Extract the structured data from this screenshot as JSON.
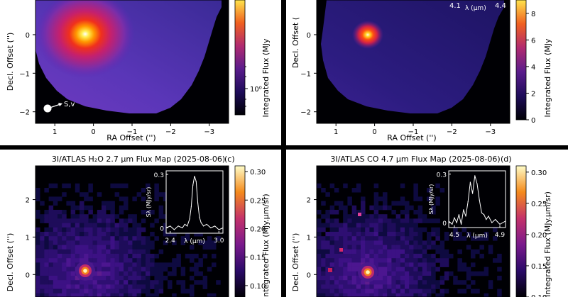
{
  "figure": {
    "background": "#000000",
    "panel_bg": "#ffffff"
  },
  "chart_data": [
    {
      "type": "heatmap",
      "panel": "a",
      "title": "",
      "xlabel": "RA Offset ('')",
      "ylabel": "Decl. Offset ('')",
      "xlim": [
        1.5,
        -3.5
      ],
      "ylim": [
        -2.3,
        0.9
      ],
      "x_ticks": [
        1,
        0,
        -1,
        -2,
        -3
      ],
      "x_tick_labels": [
        "1",
        "0",
        "−1",
        "−2",
        "−3"
      ],
      "y_ticks": [
        0,
        -1,
        -2
      ],
      "y_tick_labels": [
        "0",
        "−1",
        "−2"
      ],
      "colorbar": {
        "label": "Integrated Flux (MJy",
        "scale": "log",
        "tick_labels": [
          "10⁰"
        ]
      },
      "peak": {
        "x": 0.0,
        "y": 0.0
      },
      "annotations": [
        {
          "text": "S,v"
        }
      ]
    },
    {
      "type": "heatmap",
      "panel": "b",
      "title": "",
      "xlabel": "RA Offset ('')",
      "ylabel": "Decl. Offset (",
      "xlim": [
        1.5,
        -3.5
      ],
      "ylim": [
        -2.3,
        0.9
      ],
      "x_ticks": [
        1,
        0,
        -1,
        -2,
        -3
      ],
      "x_tick_labels": [
        "1",
        "0",
        "−1",
        "−2",
        "−3"
      ],
      "y_ticks": [
        0,
        -1,
        -2
      ],
      "y_tick_labels": [
        "0",
        "−1",
        "−2"
      ],
      "colorbar": {
        "label": "Integrated Flux (MJy",
        "scale": "linear",
        "range": [
          0,
          9
        ],
        "ticks": [
          0,
          2,
          4,
          6,
          8
        ],
        "tick_labels": [
          "0",
          "2",
          "4",
          "6",
          "8"
        ]
      },
      "peak": {
        "x": 0.0,
        "y": 0.0
      },
      "inset": {
        "tick_labels": [
          "4.1",
          "4.4"
        ],
        "xlabel": "λ (μm)"
      }
    },
    {
      "type": "heatmap",
      "panel": "c",
      "panel_label": "(c)",
      "title": "3I/ATLAS H₂O 2.7 μm Flux Map (2025-08-06)",
      "xlabel": "",
      "ylabel": "Decl. Offset ('')",
      "ylim": [
        -0.6,
        2.9
      ],
      "y_ticks": [
        2,
        1,
        0
      ],
      "y_tick_labels": [
        "2",
        "1",
        "0"
      ],
      "colorbar": {
        "label": "ntegrated Flux (MJy.μm/sr)",
        "range": [
          0.08,
          0.31
        ],
        "ticks": [
          0.3,
          0.25,
          0.2,
          0.15,
          0.1
        ],
        "tick_labels": [
          "0.30",
          "0.25",
          "0.20",
          "0.15",
          "0.10"
        ]
      },
      "peak": {
        "x": 0.0,
        "y": 0.0
      },
      "inset": {
        "type": "line",
        "xlabel": "λ (μm)",
        "ylabel": "Sλ (MJy/sr)",
        "xlim": [
          2.35,
          3.05
        ],
        "ylim": [
          -0.03,
          0.32
        ],
        "x_tick_labels": [
          "2.4",
          "3.0"
        ],
        "y_tick_labels": [
          "0.3",
          "0"
        ],
        "x": [
          2.35,
          2.4,
          2.45,
          2.5,
          2.55,
          2.58,
          2.61,
          2.64,
          2.66,
          2.68,
          2.7,
          2.72,
          2.74,
          2.76,
          2.78,
          2.81,
          2.85,
          2.9,
          2.95,
          3.0,
          3.05
        ],
        "y": [
          0.0,
          0.01,
          -0.01,
          0.01,
          0.0,
          0.02,
          0.01,
          0.05,
          0.12,
          0.24,
          0.29,
          0.26,
          0.14,
          0.06,
          0.03,
          0.01,
          0.02,
          0.0,
          0.01,
          -0.01,
          0.0
        ]
      }
    },
    {
      "type": "heatmap",
      "panel": "d",
      "panel_label": "(d)",
      "title": "3I/ATLAS CO 4.7 μm Flux Map (2025-08-06)",
      "xlabel": "",
      "ylabel": "Decl. Offset ('')",
      "ylim": [
        -0.6,
        2.9
      ],
      "y_ticks": [
        2,
        1,
        0
      ],
      "y_tick_labels": [
        "2",
        "1",
        "0"
      ],
      "colorbar": {
        "label": "Integrated Flux (MJy.μm/sr)",
        "range": [
          0.1,
          0.31
        ],
        "ticks": [
          0.3,
          0.25,
          0.2,
          0.15,
          0.1
        ],
        "tick_labels": [
          "0.30",
          "0.25",
          "0.20",
          "0.15",
          "0.10"
        ]
      },
      "peak": {
        "x": 0.0,
        "y": 0.0
      },
      "inset": {
        "type": "line",
        "xlabel": "λ (μm)",
        "ylabel": "Sλ (MJy/sr)",
        "xlim": [
          4.45,
          4.95
        ],
        "ylim": [
          -0.03,
          0.32
        ],
        "x_tick_labels": [
          "4.5",
          "4.9"
        ],
        "y_tick_labels": [
          "0.3",
          "0"
        ],
        "x": [
          4.45,
          4.48,
          4.5,
          4.52,
          4.54,
          4.56,
          4.58,
          4.6,
          4.62,
          4.64,
          4.66,
          4.68,
          4.7,
          4.72,
          4.74,
          4.76,
          4.78,
          4.8,
          4.83,
          4.86,
          4.9,
          4.95
        ],
        "y": [
          0.01,
          -0.01,
          0.03,
          0.0,
          0.05,
          -0.01,
          0.08,
          0.04,
          0.13,
          0.25,
          0.18,
          0.29,
          0.24,
          0.14,
          0.06,
          0.05,
          0.02,
          0.04,
          0.0,
          0.02,
          -0.01,
          0.01
        ]
      }
    }
  ]
}
